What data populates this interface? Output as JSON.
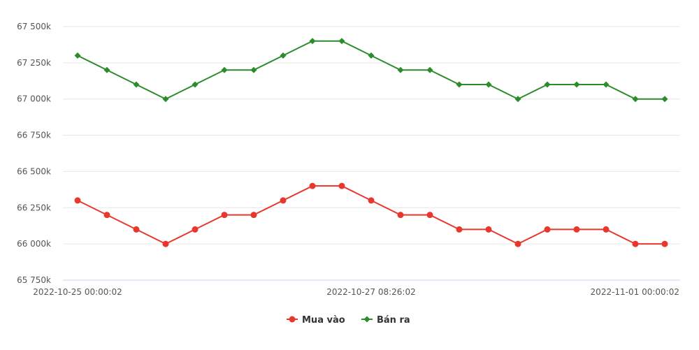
{
  "chart_data": {
    "type": "line",
    "title": "",
    "xlabel": "",
    "ylabel": "",
    "x_tick_labels": [
      "2022-10-25 00:00:02",
      "2022-10-27 08:26:02",
      "2022-11-01 00:00:02"
    ],
    "y_tick_labels": [
      "65 750k",
      "66 000k",
      "66 250k",
      "66 500k",
      "66 750k",
      "67 000k",
      "67 250k",
      "67 500k"
    ],
    "y_ticks": [
      65750,
      66000,
      66250,
      66500,
      66750,
      67000,
      67250,
      67500
    ],
    "ylim": [
      65750,
      67500
    ],
    "grid": true,
    "legend_position": "bottom-center",
    "point_count": 21,
    "series": [
      {
        "name": "Mua vào",
        "color": "#e8372c",
        "marker": "circle",
        "values": [
          66300,
          66200,
          66100,
          66000,
          66100,
          66200,
          66200,
          66300,
          66400,
          66400,
          66300,
          66200,
          66200,
          66100,
          66100,
          66000,
          66100,
          66100,
          66100,
          66000,
          66000
        ]
      },
      {
        "name": "Bán ra",
        "color": "#2c8c2c",
        "marker": "diamond",
        "values": [
          67300,
          67200,
          67100,
          67000,
          67100,
          67200,
          67200,
          67300,
          67400,
          67400,
          67300,
          67200,
          67200,
          67100,
          67100,
          67000,
          67100,
          67100,
          67100,
          67000,
          67000
        ]
      }
    ]
  }
}
